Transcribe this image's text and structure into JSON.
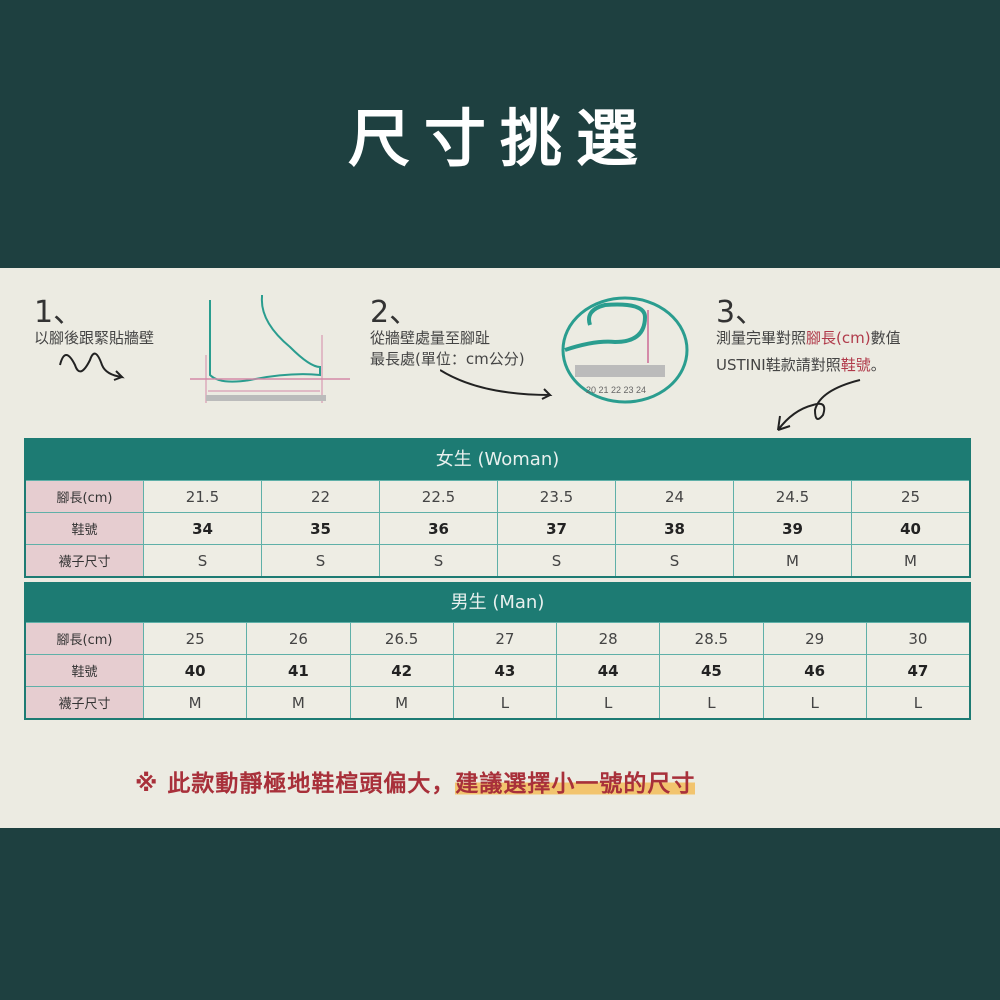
{
  "title": "尺寸挑選",
  "steps": [
    {
      "num": "1、",
      "lines": [
        "以腳後跟緊貼牆壁"
      ]
    },
    {
      "num": "2、",
      "lines": [
        "從牆壁處量至腳趾",
        "最長處(單位：cm公分)"
      ]
    },
    {
      "num": "3、",
      "line1_pre": "測量完畢對照",
      "line1_red": "腳長(cm)",
      "line1_post": "數值",
      "line2_pre": "USTINI鞋款請對照",
      "line2_red": "鞋號",
      "line2_post": "。"
    }
  ],
  "ruler_numbers": "20 21 22 23 24",
  "women": {
    "header": "女生 (Woman)",
    "rows": [
      {
        "label": "腳長(cm)",
        "values": [
          "21.5",
          "22",
          "22.5",
          "23.5",
          "24",
          "24.5",
          "25"
        ]
      },
      {
        "label": "鞋號",
        "values": [
          "34",
          "35",
          "36",
          "37",
          "38",
          "39",
          "40"
        ]
      },
      {
        "label": "襪子尺寸",
        "values": [
          "S",
          "S",
          "S",
          "S",
          "S",
          "M",
          "M"
        ]
      }
    ]
  },
  "men": {
    "header": "男生 (Man)",
    "rows": [
      {
        "label": "腳長(cm)",
        "values": [
          "25",
          "26",
          "26.5",
          "27",
          "28",
          "28.5",
          "29",
          "30"
        ]
      },
      {
        "label": "鞋號",
        "values": [
          "40",
          "41",
          "42",
          "43",
          "44",
          "45",
          "46",
          "47"
        ]
      },
      {
        "label": "襪子尺寸",
        "values": [
          "M",
          "M",
          "M",
          "L",
          "L",
          "L",
          "L",
          "L"
        ]
      }
    ]
  },
  "note": {
    "prefix": "※  此款動靜極地鞋楦頭偏大，",
    "highlight": "建議選擇小一號的尺寸"
  },
  "colors": {
    "background": "#1e4040",
    "panel": "#ecebe2",
    "teal": "#1d7b73",
    "label_cell": "#e6cdd0",
    "note_red": "#a8303a",
    "highlight": "#f2c46e"
  }
}
